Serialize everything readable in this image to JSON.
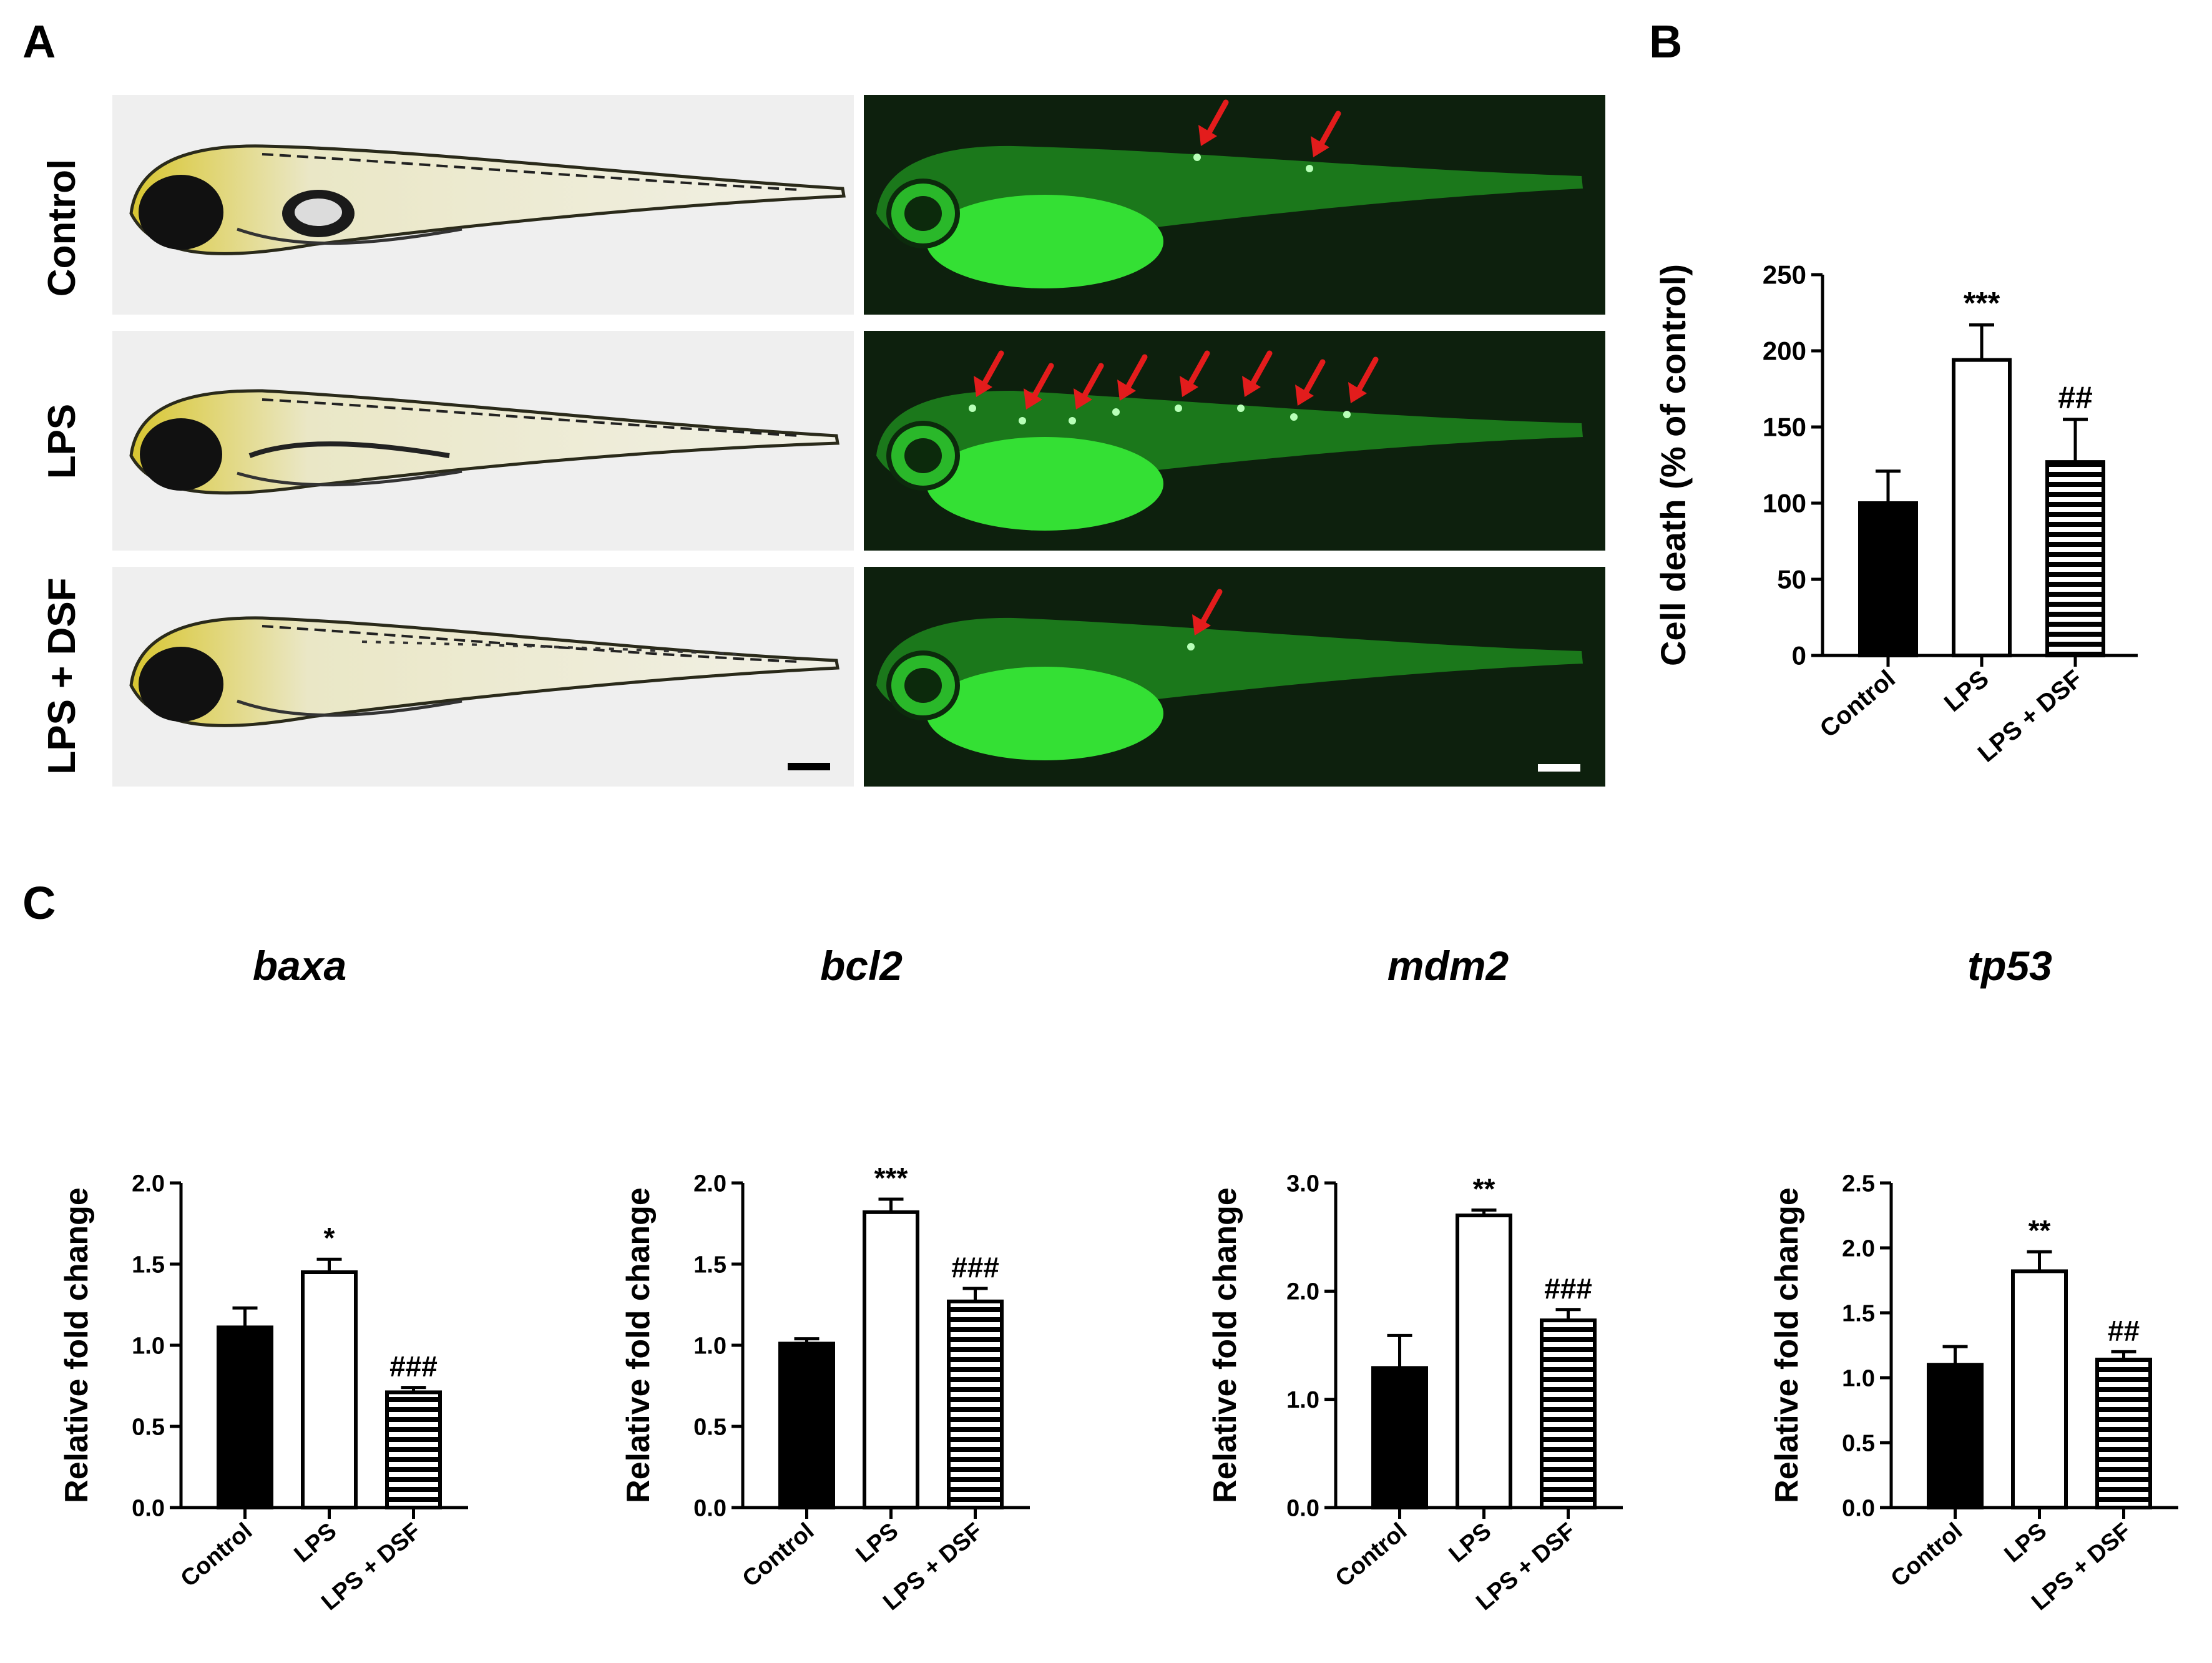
{
  "panels": {
    "a_letter": "A",
    "b_letter": "B",
    "c_letter": "C"
  },
  "panel_a": {
    "rows": [
      "Control",
      "LPS",
      "LPS + DSF"
    ],
    "arrow_counts": [
      2,
      8,
      1
    ],
    "arrow_color": "#e31c1c",
    "fluorescence_color": "#2ee62e"
  },
  "chart_data": [
    {
      "id": "B",
      "type": "bar",
      "title": "",
      "categories": [
        "Control",
        "LPS",
        "LPS + DSF"
      ],
      "values": [
        100,
        194,
        127
      ],
      "errors": [
        21,
        23,
        28
      ],
      "significance": [
        "",
        "***",
        "##"
      ],
      "ylabel": "Cell death (% of control)",
      "ylim": [
        0,
        250
      ],
      "yticks": [
        0,
        50,
        100,
        150,
        200,
        250
      ],
      "fills": [
        "solid",
        "open",
        "striped"
      ]
    },
    {
      "id": "C1",
      "type": "bar",
      "title": "baxa",
      "categories": [
        "Control",
        "LPS",
        "LPS + DSF"
      ],
      "values": [
        1.11,
        1.45,
        0.71
      ],
      "errors": [
        0.12,
        0.08,
        0.03
      ],
      "significance": [
        "",
        "*",
        "###"
      ],
      "ylabel": "Relative fold change",
      "ylim": [
        0,
        2.0
      ],
      "yticks": [
        "0.0",
        "0.5",
        "1.0",
        "1.5",
        "2.0"
      ],
      "fills": [
        "solid",
        "open",
        "striped"
      ]
    },
    {
      "id": "C2",
      "type": "bar",
      "title": "bcl2",
      "categories": [
        "Control",
        "LPS",
        "LPS + DSF"
      ],
      "values": [
        1.01,
        1.82,
        1.27
      ],
      "errors": [
        0.03,
        0.08,
        0.08
      ],
      "significance": [
        "",
        "***",
        "###"
      ],
      "ylabel": "Relative fold change",
      "ylim": [
        0,
        2.0
      ],
      "yticks": [
        "0.0",
        "0.5",
        "1.0",
        "1.5",
        "2.0"
      ],
      "fills": [
        "solid",
        "open",
        "striped"
      ]
    },
    {
      "id": "C3",
      "type": "bar",
      "title": "mdm2",
      "categories": [
        "Control",
        "LPS",
        "LPS + DSF"
      ],
      "values": [
        1.29,
        2.7,
        1.73
      ],
      "errors": [
        0.3,
        0.05,
        0.1
      ],
      "significance": [
        "",
        "**",
        "###"
      ],
      "ylabel": "Relative fold change",
      "ylim": [
        0,
        3.0
      ],
      "yticks": [
        "0.0",
        "1.0",
        "2.0",
        "3.0"
      ],
      "fills": [
        "solid",
        "open",
        "striped"
      ]
    },
    {
      "id": "C4",
      "type": "bar",
      "title": "tp53",
      "categories": [
        "Control",
        "LPS",
        "LPS + DSF"
      ],
      "values": [
        1.1,
        1.82,
        1.14
      ],
      "errors": [
        0.14,
        0.15,
        0.06
      ],
      "significance": [
        "",
        "**",
        "##"
      ],
      "ylabel": "Relative fold change",
      "ylim": [
        0,
        2.5
      ],
      "yticks": [
        "0.0",
        "0.5",
        "1.0",
        "1.5",
        "2.0",
        "2.5"
      ],
      "fills": [
        "solid",
        "open",
        "striped"
      ]
    }
  ]
}
